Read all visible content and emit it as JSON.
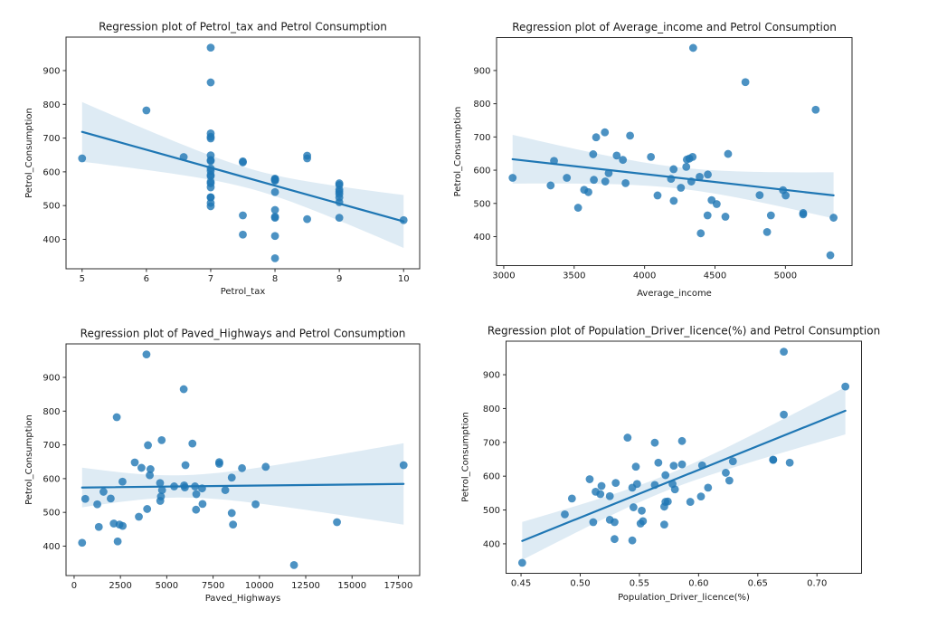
{
  "figure": {
    "background": "#ffffff",
    "accent_color": "#1f77b4",
    "band_color": "#1f77b4",
    "band_opacity": 0.15,
    "point_opacity": 0.8,
    "point_radius": 4.4,
    "line_width": 2.2,
    "ci_level": 95,
    "t_value": 2.0129,
    "n_points": 48
  },
  "dataset": {
    "Petrol_tax": [
      9,
      9,
      9,
      7.5,
      8,
      10,
      8,
      8,
      8,
      7,
      8,
      7.5,
      7,
      7,
      7,
      7,
      7,
      7,
      7,
      8.5,
      7,
      8,
      9,
      9,
      8.5,
      9,
      8,
      7.5,
      8,
      9,
      7,
      7,
      8,
      7.5,
      8,
      6.58,
      5,
      7,
      8.5,
      7,
      7,
      7,
      7,
      7,
      6,
      9,
      7,
      7
    ],
    "Average_income": [
      3571,
      4092,
      3865,
      4870,
      4399,
      5342,
      5319,
      5126,
      4447,
      4512,
      4391,
      5126,
      4817,
      4207,
      4332,
      4318,
      4206,
      3718,
      4716,
      4341,
      4593,
      4983,
      4897,
      4258,
      4574,
      3721,
      3448,
      3846,
      4188,
      3601,
      3640,
      3333,
      3063,
      3357,
      3528,
      3802,
      4045,
      3897,
      3635,
      4345,
      4449,
      3656,
      4300,
      3745,
      5215,
      4476,
      4296,
      5002
    ],
    "Paved_Highways": [
      1976,
      1250,
      1586,
      2351,
      431,
      1333,
      11868,
      2138,
      8577,
      8507,
      5939,
      14186,
      6930,
      6580,
      8159,
      10340,
      8508,
      4725,
      5915,
      6010,
      7834,
      602,
      2449,
      4686,
      2619,
      4746,
      5399,
      9061,
      5975,
      4650,
      6905,
      6594,
      6524,
      4121,
      3495,
      7834,
      17782,
      6385,
      3274,
      3905,
      4639,
      3985,
      3635,
      2611,
      2302,
      3942,
      4083,
      9794
    ],
    "Population_Driver_licence(%)": [
      0.525,
      0.572,
      0.58,
      0.529,
      0.544,
      0.571,
      0.451,
      0.553,
      0.529,
      0.552,
      0.53,
      0.525,
      0.574,
      0.545,
      0.608,
      0.586,
      0.572,
      0.54,
      0.724,
      0.677,
      0.663,
      0.602,
      0.511,
      0.517,
      0.551,
      0.544,
      0.548,
      0.579,
      0.563,
      0.493,
      0.518,
      0.513,
      0.578,
      0.547,
      0.487,
      0.629,
      0.566,
      0.586,
      0.663,
      0.672,
      0.626,
      0.563,
      0.603,
      0.508,
      0.672,
      0.571,
      0.623,
      0.593
    ],
    "Petrol_Consumption": [
      541,
      524,
      561,
      414,
      410,
      457,
      344,
      467,
      464,
      498,
      580,
      471,
      525,
      508,
      566,
      635,
      603,
      714,
      865,
      640,
      649,
      540,
      464,
      547,
      460,
      566,
      577,
      631,
      574,
      534,
      571,
      554,
      577,
      628,
      487,
      644,
      640,
      704,
      648,
      968,
      587,
      699,
      632,
      591,
      782,
      510,
      610,
      524
    ]
  },
  "chart_data": [
    {
      "type": "scatter",
      "regression": true,
      "title": "Regression plot of Petrol_tax and Petrol Consumption",
      "xlabel": "Petrol_tax",
      "ylabel": "Petrol_Consumption",
      "x_column": "Petrol_tax",
      "y_column": "Petrol_Consumption",
      "xlim": [
        4.75,
        10.25
      ],
      "ylim": [
        312.8,
        999.2
      ],
      "xticks": [
        5,
        6,
        7,
        8,
        9,
        10
      ],
      "xtick_labels": [
        "5",
        "6",
        "7",
        "8",
        "9",
        "10"
      ],
      "yticks": [
        400,
        500,
        600,
        700,
        800,
        900
      ],
      "ytick_labels": [
        "400",
        "500",
        "600",
        "700",
        "800",
        "900"
      ],
      "grid": false,
      "legend": false
    },
    {
      "type": "scatter",
      "regression": true,
      "title": "Regression plot of Average_income and Petrol Consumption",
      "xlabel": "Average_income",
      "ylabel": "Petrol_Consumption",
      "x_column": "Average_income",
      "y_column": "Petrol_Consumption",
      "xlim": [
        2949,
        5473
      ],
      "ylim": [
        312.8,
        999.2
      ],
      "xticks": [
        3000,
        3500,
        4000,
        4500,
        5000
      ],
      "xtick_labels": [
        "3000",
        "3500",
        "4000",
        "4500",
        "5000"
      ],
      "yticks": [
        400,
        500,
        600,
        700,
        800,
        900
      ],
      "ytick_labels": [
        "400",
        "500",
        "600",
        "700",
        "800",
        "900"
      ],
      "grid": false,
      "legend": false
    },
    {
      "type": "scatter",
      "regression": true,
      "title": "Regression plot of Paved_Highways and Petrol Consumption",
      "xlabel": "Paved_Highways",
      "ylabel": "Petrol_Consumption",
      "x_column": "Paved_Highways",
      "y_column": "Petrol_Consumption",
      "xlim": [
        -436.5,
        18649.5
      ],
      "ylim": [
        312.8,
        999.2
      ],
      "xticks": [
        0,
        2500,
        5000,
        7500,
        10000,
        12500,
        15000,
        17500
      ],
      "xtick_labels": [
        "0",
        "2500",
        "5000",
        "7500",
        "10000",
        "12500",
        "15000",
        "17500"
      ],
      "yticks": [
        400,
        500,
        600,
        700,
        800,
        900
      ],
      "ytick_labels": [
        "400",
        "500",
        "600",
        "700",
        "800",
        "900"
      ],
      "grid": false,
      "legend": false
    },
    {
      "type": "scatter",
      "regression": true,
      "title": "Regression plot of Population_Driver_licence(%) and Petrol Consumption",
      "xlabel": "Population_Driver_licence(%)",
      "ylabel": "Petrol_Consumption",
      "x_column": "Population_Driver_licence(%)",
      "y_column": "Petrol_Consumption",
      "xlim": [
        0.43735,
        0.73765
      ],
      "ylim": [
        312.8,
        999.2
      ],
      "xticks": [
        0.45,
        0.5,
        0.55,
        0.6,
        0.65,
        0.7
      ],
      "xtick_labels": [
        "0.45",
        "0.50",
        "0.55",
        "0.60",
        "0.65",
        "0.70"
      ],
      "yticks": [
        400,
        500,
        600,
        700,
        800,
        900
      ],
      "ytick_labels": [
        "400",
        "500",
        "600",
        "700",
        "800",
        "900"
      ],
      "grid": false,
      "legend": false
    }
  ]
}
